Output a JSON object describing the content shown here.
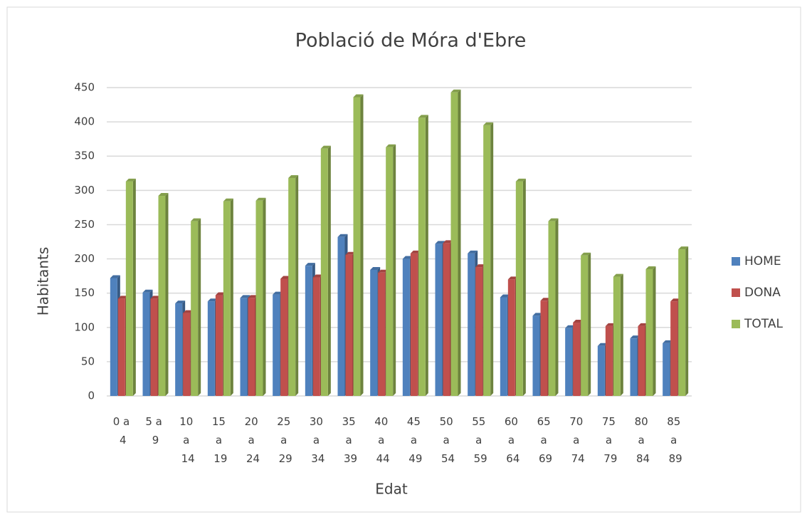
{
  "chart_data": {
    "type": "bar",
    "title": "Població de Móra d'Ebre",
    "x_label": "Edat",
    "y_label": "Habitants",
    "categories": [
      "0 a 4",
      "5 a 9",
      "10 a 14",
      "15 a 19",
      "20 a 24",
      "25 a 29",
      "30 a 34",
      "35 a 39",
      "40 a 44",
      "45 a 49",
      "50 a 54",
      "55 a 59",
      "60 a 64",
      "65 a 69",
      "70 a 74",
      "75 a 79",
      "80 a 84",
      "85 a 89"
    ],
    "series": [
      {
        "name": "HOME",
        "color": "#4f81bd",
        "values": [
          172,
          151,
          135,
          138,
          143,
          148,
          190,
          232,
          184,
          200,
          222,
          208,
          144,
          117,
          99,
          73,
          84,
          77
        ]
      },
      {
        "name": "DONA",
        "color": "#c0504d",
        "values": [
          142,
          142,
          121,
          147,
          143,
          171,
          173,
          206,
          180,
          208,
          223,
          188,
          170,
          139,
          107,
          102,
          102,
          138
        ]
      },
      {
        "name": "TOTAL",
        "color": "#9bbb59",
        "values": [
          313,
          292,
          255,
          284,
          285,
          318,
          361,
          436,
          363,
          406,
          443,
          395,
          313,
          255,
          205,
          174,
          185,
          214
        ]
      }
    ],
    "ylim": [
      0,
      450
    ],
    "yticks": [
      0,
      50,
      100,
      150,
      200,
      250,
      300,
      350,
      400,
      450
    ],
    "grid": true,
    "legend": "right"
  }
}
